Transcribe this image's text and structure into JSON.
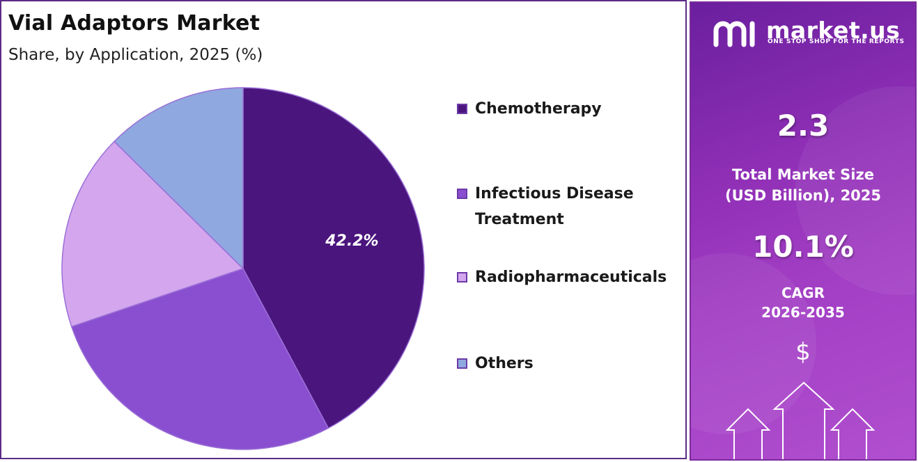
{
  "header": {
    "title": "Vial Adaptors Market",
    "subtitle": "Share, by Application, 2025 (%)"
  },
  "chart_data": {
    "type": "pie",
    "title": "Vial Adaptors Market",
    "subtitle": "Share, by Application, 2025 (%)",
    "legend_position": "right",
    "categories": [
      "Chemotherapy",
      "Infectious Disease Treatment",
      "Radiopharmaceuticals",
      "Others"
    ],
    "values": [
      42.2,
      27.6,
      17.6,
      12.6
    ],
    "colors": [
      "#4a157d",
      "#8a4fd0",
      "#d3a6ee",
      "#8fa8df"
    ],
    "data_labels": [
      {
        "index": 0,
        "text": "42.2%"
      }
    ]
  },
  "legend": {
    "items": [
      {
        "lines": [
          "Chemotherapy"
        ],
        "color": "#4a157d"
      },
      {
        "lines": [
          "Infectious Disease",
          "Treatment"
        ],
        "color": "#8a4fd0"
      },
      {
        "lines": [
          "Radiopharmaceuticals"
        ],
        "color": "#d3a6ee"
      },
      {
        "lines": [
          "Others"
        ],
        "color": "#8fa8df"
      }
    ]
  },
  "sidebar": {
    "brand": "market.us",
    "tagline": "ONE STOP SHOP FOR THE REPORTS",
    "market_size_value": "2.3",
    "market_size_label_1": "Total Market Size",
    "market_size_label_2": "(USD Billion), 2025",
    "cagr_value": "10.1%",
    "cagr_label_1": "CAGR",
    "cagr_label_2": "2026-2035",
    "currency_symbol": "$",
    "icons": [
      "market-us-logo-icon",
      "dollar-icon",
      "up-arrow-icon"
    ]
  }
}
